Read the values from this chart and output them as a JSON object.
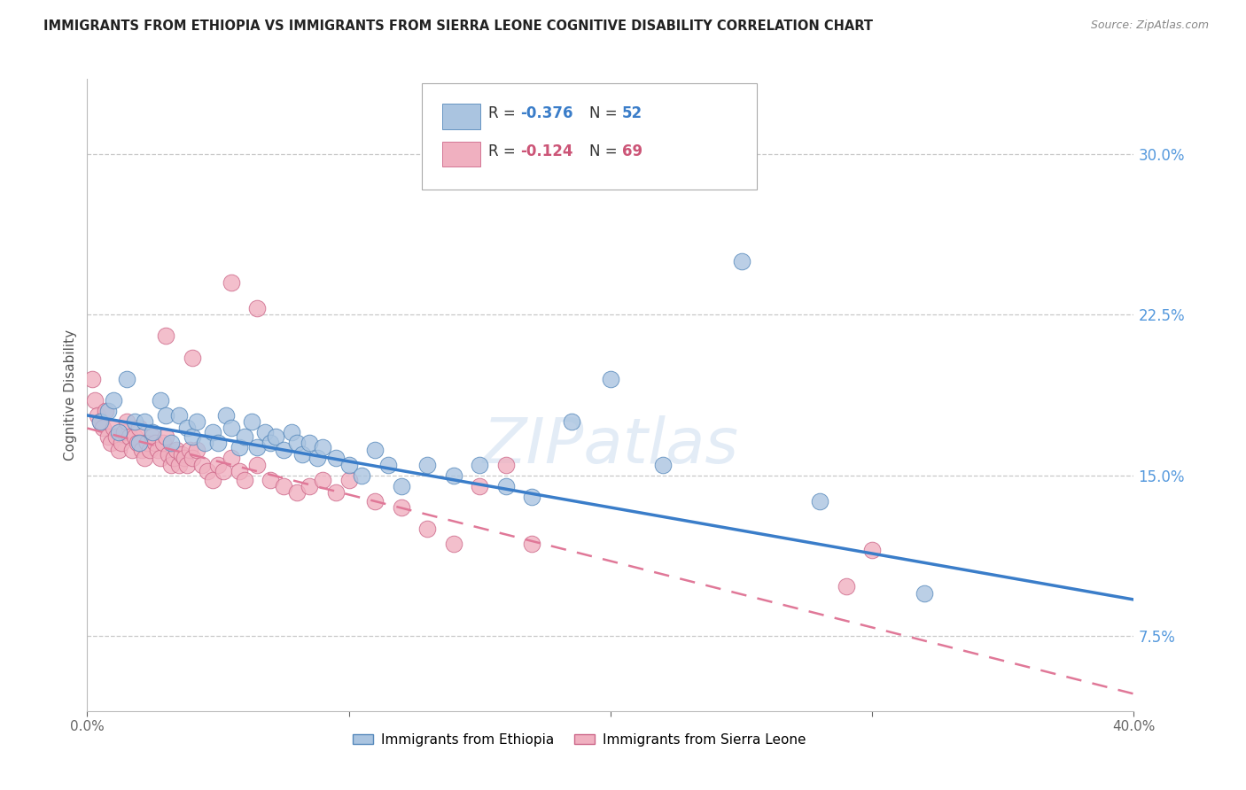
{
  "title": "IMMIGRANTS FROM ETHIOPIA VS IMMIGRANTS FROM SIERRA LEONE COGNITIVE DISABILITY CORRELATION CHART",
  "source": "Source: ZipAtlas.com",
  "ylabel": "Cognitive Disability",
  "right_ytick_labels": [
    "7.5%",
    "15.0%",
    "22.5%",
    "30.0%"
  ],
  "right_ytick_vals": [
    0.075,
    0.15,
    0.225,
    0.3
  ],
  "xmin": 0.0,
  "xmax": 0.4,
  "ymin": 0.04,
  "ymax": 0.335,
  "ethiopia_color": "#aac4e0",
  "ethiopia_edge": "#5588bb",
  "sierraleone_color": "#f0b0c0",
  "sierraleone_edge": "#cc6688",
  "ethiopia_R": "-0.376",
  "ethiopia_N": "52",
  "sierraleone_R": "-0.124",
  "sierraleone_N": "69",
  "legend_title_ethiopia": "Immigrants from Ethiopia",
  "legend_title_sierraleone": "Immigrants from Sierra Leone",
  "ethiopia_line_x0": 0.0,
  "ethiopia_line_y0": 0.178,
  "ethiopia_line_x1": 0.4,
  "ethiopia_line_y1": 0.092,
  "sierraleone_line_x0": 0.0,
  "sierraleone_line_y0": 0.172,
  "sierraleone_line_x1": 0.4,
  "sierraleone_line_y1": 0.048,
  "ethiopia_x": [
    0.005,
    0.008,
    0.01,
    0.012,
    0.015,
    0.018,
    0.02,
    0.022,
    0.025,
    0.028,
    0.03,
    0.032,
    0.035,
    0.038,
    0.04,
    0.042,
    0.045,
    0.048,
    0.05,
    0.053,
    0.055,
    0.058,
    0.06,
    0.063,
    0.065,
    0.068,
    0.07,
    0.072,
    0.075,
    0.078,
    0.08,
    0.082,
    0.085,
    0.088,
    0.09,
    0.095,
    0.1,
    0.105,
    0.11,
    0.115,
    0.12,
    0.13,
    0.14,
    0.15,
    0.16,
    0.17,
    0.185,
    0.2,
    0.22,
    0.25,
    0.28,
    0.32
  ],
  "ethiopia_y": [
    0.175,
    0.18,
    0.185,
    0.17,
    0.195,
    0.175,
    0.165,
    0.175,
    0.17,
    0.185,
    0.178,
    0.165,
    0.178,
    0.172,
    0.168,
    0.175,
    0.165,
    0.17,
    0.165,
    0.178,
    0.172,
    0.163,
    0.168,
    0.175,
    0.163,
    0.17,
    0.165,
    0.168,
    0.162,
    0.17,
    0.165,
    0.16,
    0.165,
    0.158,
    0.163,
    0.158,
    0.155,
    0.15,
    0.162,
    0.155,
    0.145,
    0.155,
    0.15,
    0.155,
    0.145,
    0.14,
    0.175,
    0.195,
    0.155,
    0.25,
    0.138,
    0.095
  ],
  "sierraleone_x": [
    0.002,
    0.003,
    0.004,
    0.005,
    0.006,
    0.007,
    0.008,
    0.009,
    0.01,
    0.011,
    0.012,
    0.013,
    0.014,
    0.015,
    0.016,
    0.017,
    0.018,
    0.019,
    0.02,
    0.021,
    0.022,
    0.023,
    0.024,
    0.025,
    0.026,
    0.027,
    0.028,
    0.029,
    0.03,
    0.031,
    0.032,
    0.033,
    0.034,
    0.035,
    0.036,
    0.037,
    0.038,
    0.039,
    0.04,
    0.042,
    0.044,
    0.046,
    0.048,
    0.05,
    0.052,
    0.055,
    0.058,
    0.06,
    0.065,
    0.07,
    0.075,
    0.08,
    0.085,
    0.09,
    0.095,
    0.1,
    0.11,
    0.12,
    0.13,
    0.14,
    0.15,
    0.16,
    0.17,
    0.03,
    0.04,
    0.055,
    0.065,
    0.29,
    0.3
  ],
  "sierraleone_y": [
    0.195,
    0.185,
    0.178,
    0.175,
    0.172,
    0.18,
    0.168,
    0.165,
    0.172,
    0.168,
    0.162,
    0.165,
    0.17,
    0.175,
    0.168,
    0.162,
    0.168,
    0.165,
    0.172,
    0.162,
    0.158,
    0.165,
    0.162,
    0.168,
    0.165,
    0.162,
    0.158,
    0.165,
    0.168,
    0.16,
    0.155,
    0.158,
    0.162,
    0.155,
    0.16,
    0.158,
    0.155,
    0.162,
    0.158,
    0.162,
    0.155,
    0.152,
    0.148,
    0.155,
    0.152,
    0.158,
    0.152,
    0.148,
    0.155,
    0.148,
    0.145,
    0.142,
    0.145,
    0.148,
    0.142,
    0.148,
    0.138,
    0.135,
    0.125,
    0.118,
    0.145,
    0.155,
    0.118,
    0.215,
    0.205,
    0.24,
    0.228,
    0.098,
    0.115
  ],
  "watermark": "ZIPatlas",
  "background_color": "#ffffff",
  "grid_color": "#c8c8c8",
  "right_axis_color": "#5599dd",
  "legend_R_color": "#3366cc",
  "legend_N_color": "#3366cc"
}
